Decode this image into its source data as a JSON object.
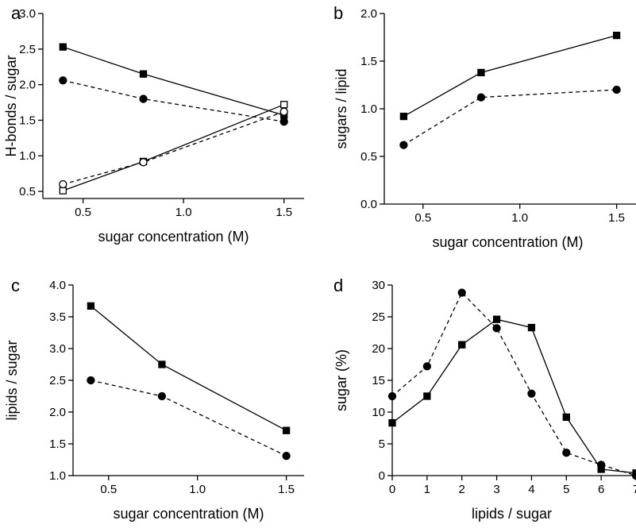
{
  "chart_data": [
    {
      "type": "line",
      "panel": "a",
      "xlabel": "sugar concentration (M)",
      "ylabel": "H-bonds / sugar",
      "xlim": [
        0.3,
        1.6
      ],
      "ylim": [
        0.4,
        3.0
      ],
      "xticks": [
        0.5,
        1.0,
        1.5
      ],
      "xtick_labels": [
        "0.5",
        "1.0",
        "1.5"
      ],
      "yticks": [
        0.5,
        1.0,
        1.5,
        2.0,
        2.5,
        3.0
      ],
      "ytick_labels": [
        "0.5",
        "1.0",
        "1.5",
        "2.0",
        "2.5",
        "3.0"
      ],
      "grid": false,
      "series": [
        {
          "x": [
            0.4,
            0.8,
            1.5
          ],
          "y": [
            2.53,
            2.15,
            1.57
          ],
          "style": "solid",
          "marker": "square",
          "filled": true
        },
        {
          "x": [
            0.4,
            0.8,
            1.5
          ],
          "y": [
            2.06,
            1.8,
            1.48
          ],
          "style": "dashed",
          "marker": "circle",
          "filled": true
        },
        {
          "x": [
            0.4,
            0.8,
            1.5
          ],
          "y": [
            0.51,
            0.92,
            1.72
          ],
          "style": "solid",
          "marker": "square",
          "filled": false
        },
        {
          "x": [
            0.4,
            0.8,
            1.5
          ],
          "y": [
            0.6,
            0.91,
            1.62
          ],
          "style": "dashed",
          "marker": "circle",
          "filled": false
        }
      ]
    },
    {
      "type": "line",
      "panel": "b",
      "xlabel": "sugar concentration (M)",
      "ylabel": "sugars / lipid",
      "xlim": [
        0.3,
        1.6
      ],
      "ylim": [
        0.0,
        2.0
      ],
      "xticks": [
        0.5,
        1.0,
        1.5
      ],
      "xtick_labels": [
        "0.5",
        "1.0",
        "1.5"
      ],
      "yticks": [
        0.0,
        0.5,
        1.0,
        1.5,
        2.0
      ],
      "ytick_labels": [
        "0.0",
        "0.5",
        "1.0",
        "1.5",
        "2.0"
      ],
      "grid": false,
      "series": [
        {
          "x": [
            0.4,
            0.8,
            1.5
          ],
          "y": [
            0.92,
            1.38,
            1.77
          ],
          "style": "solid",
          "marker": "square",
          "filled": true
        },
        {
          "x": [
            0.4,
            0.8,
            1.5
          ],
          "y": [
            0.62,
            1.12,
            1.2
          ],
          "style": "dashed",
          "marker": "circle",
          "filled": true
        }
      ]
    },
    {
      "type": "line",
      "panel": "c",
      "xlabel": "sugar concentration (M)",
      "ylabel": "lipids / sugar",
      "xlim": [
        0.3,
        1.6
      ],
      "ylim": [
        1.0,
        4.0
      ],
      "xticks": [
        0.5,
        1.0,
        1.5
      ],
      "xtick_labels": [
        "0.5",
        "1.0",
        "1.5"
      ],
      "yticks": [
        1.0,
        1.5,
        2.0,
        2.5,
        3.0,
        3.5,
        4.0
      ],
      "ytick_labels": [
        "1.0",
        "1.5",
        "2.0",
        "2.5",
        "3.0",
        "3.5",
        "4.0"
      ],
      "grid": false,
      "series": [
        {
          "x": [
            0.4,
            0.8,
            1.5
          ],
          "y": [
            3.67,
            2.75,
            1.71
          ],
          "style": "solid",
          "marker": "square",
          "filled": true
        },
        {
          "x": [
            0.4,
            0.8,
            1.5
          ],
          "y": [
            2.5,
            2.25,
            1.31
          ],
          "style": "dashed",
          "marker": "circle",
          "filled": true
        }
      ]
    },
    {
      "type": "line",
      "panel": "d",
      "xlabel": "lipids / sugar",
      "ylabel": "sugar (%)",
      "xlim": [
        0,
        7
      ],
      "ylim": [
        0,
        30
      ],
      "xticks": [
        0,
        1,
        2,
        3,
        4,
        5,
        6,
        7
      ],
      "xtick_labels": [
        "0",
        "1",
        "2",
        "3",
        "4",
        "5",
        "6",
        "7"
      ],
      "yticks": [
        0,
        5,
        10,
        15,
        20,
        25,
        30
      ],
      "ytick_labels": [
        "0",
        "5",
        "10",
        "15",
        "20",
        "25",
        "30"
      ],
      "grid": false,
      "series": [
        {
          "x": [
            0,
            1,
            2,
            3,
            4,
            5,
            6,
            7
          ],
          "y": [
            8.3,
            12.5,
            20.6,
            24.6,
            23.3,
            9.2,
            1.0,
            0.4
          ],
          "style": "solid",
          "marker": "square",
          "filled": true
        },
        {
          "x": [
            0,
            1,
            2,
            3,
            4,
            5,
            6,
            7
          ],
          "y": [
            12.5,
            17.2,
            28.8,
            23.2,
            12.9,
            3.6,
            1.7,
            0.0
          ],
          "style": "dashed",
          "marker": "circle",
          "filled": true
        }
      ]
    }
  ]
}
